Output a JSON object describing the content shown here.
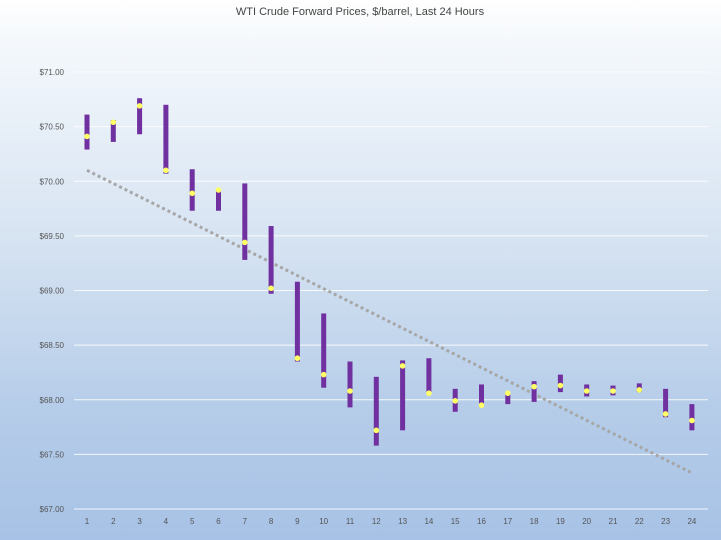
{
  "chart_data": {
    "type": "candlestick",
    "title": "WTI Crude Forward Prices, $/barrel, Last 24 Hours",
    "xlabel": "",
    "ylabel": "",
    "categories": [
      "1",
      "2",
      "3",
      "4",
      "5",
      "6",
      "7",
      "8",
      "9",
      "10",
      "11",
      "12",
      "13",
      "14",
      "15",
      "16",
      "17",
      "18",
      "19",
      "20",
      "21",
      "22",
      "23",
      "24"
    ],
    "ylim": [
      67.0,
      71.0
    ],
    "yticks": [
      67.0,
      67.5,
      68.0,
      68.5,
      69.0,
      69.5,
      70.0,
      70.5,
      71.0
    ],
    "ytick_labels": [
      "$67.00",
      "$67.50",
      "$68.00",
      "$68.50",
      "$69.00",
      "$69.50",
      "$70.00",
      "$70.50",
      "$71.00"
    ],
    "grid": true,
    "series": [
      {
        "kind": "range-bars",
        "color": "#7030a0",
        "low": [
          70.29,
          70.36,
          70.43,
          70.07,
          69.73,
          69.73,
          69.28,
          68.97,
          68.35,
          68.11,
          67.93,
          67.58,
          67.72,
          68.07,
          67.89,
          67.94,
          67.96,
          67.98,
          68.07,
          68.03,
          68.04,
          68.07,
          67.84,
          67.72
        ],
        "high": [
          70.61,
          70.56,
          70.76,
          70.7,
          70.11,
          69.93,
          69.98,
          69.59,
          69.08,
          68.79,
          68.35,
          68.21,
          68.36,
          68.38,
          68.1,
          68.14,
          68.07,
          68.17,
          68.23,
          68.14,
          68.13,
          68.15,
          68.1,
          67.96
        ]
      },
      {
        "kind": "points",
        "color": "#ffff66",
        "values": [
          70.41,
          70.54,
          70.69,
          70.1,
          69.89,
          69.92,
          69.44,
          69.02,
          68.38,
          68.23,
          68.08,
          67.72,
          68.31,
          68.06,
          67.99,
          67.95,
          68.06,
          68.12,
          68.13,
          68.08,
          68.08,
          68.09,
          67.87,
          67.81
        ]
      },
      {
        "kind": "trendline",
        "color": "#a6a6a6",
        "style": "dotted",
        "from": [
          1,
          70.1
        ],
        "to": [
          24,
          67.33
        ]
      }
    ]
  }
}
